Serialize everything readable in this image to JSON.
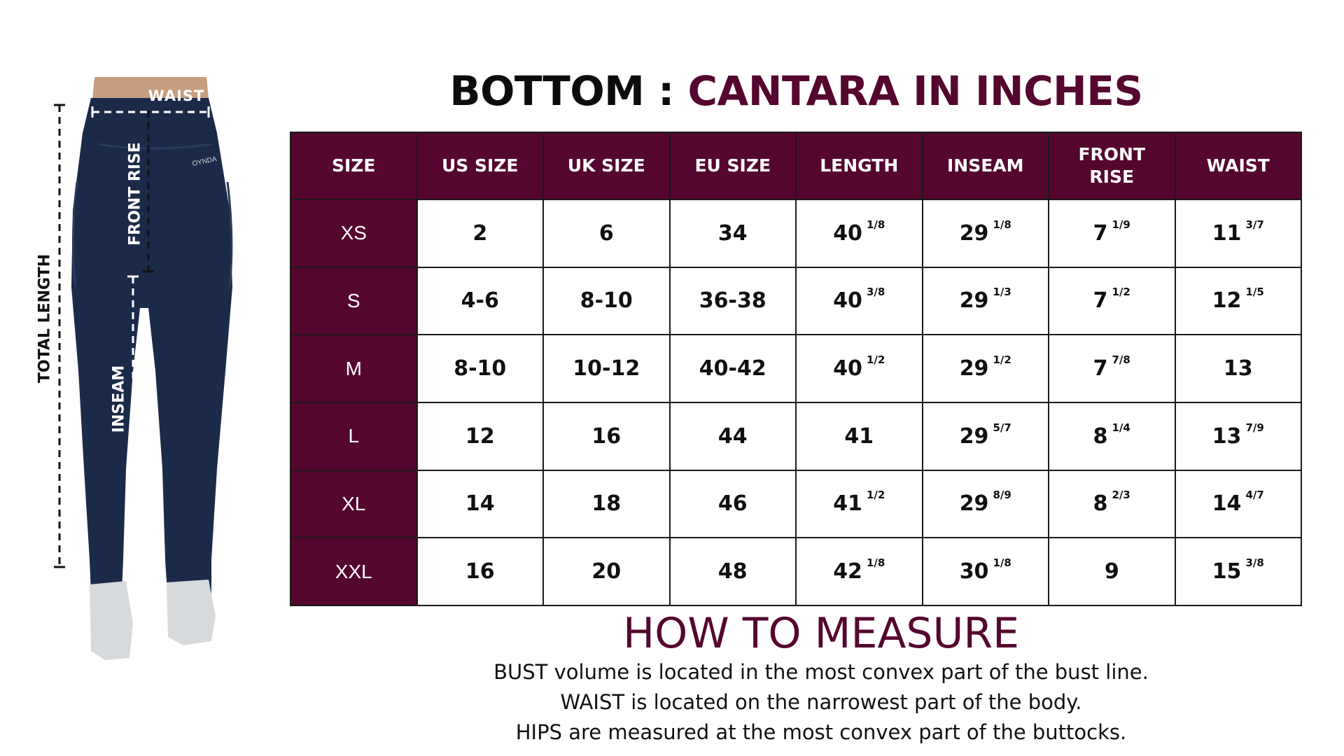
{
  "figure": {
    "labels": {
      "waist": "WAIST",
      "front_rise": "FRONT RISE",
      "total_length": "TOTAL LENGTH",
      "inseam": "INSEAM"
    },
    "logo_text": "OYNDA",
    "colors": {
      "pants": "#1c2a4a",
      "waistband": "#c69e7e",
      "shoes": "#d7dadd"
    }
  },
  "title": {
    "part1": "BOTTOM : ",
    "part2": "CANTARA IN INCHES"
  },
  "table": {
    "headers": [
      "SIZE",
      "US SIZE",
      "UK SIZE",
      "EU SIZE",
      "LENGTH",
      "INSEAM",
      "FRONT RISE",
      "WAIST"
    ],
    "rows": [
      {
        "size": "XS",
        "us": "2",
        "uk": "6",
        "eu": "34",
        "length": {
          "whole": "40",
          "frac": "1/8"
        },
        "inseam": {
          "whole": "29",
          "frac": "1/8"
        },
        "front_rise": {
          "whole": "7",
          "frac": "1/9"
        },
        "waist": {
          "whole": "11",
          "frac": "3/7"
        }
      },
      {
        "size": "S",
        "us": "4-6",
        "uk": "8-10",
        "eu": "36-38",
        "length": {
          "whole": "40",
          "frac": "3/8"
        },
        "inseam": {
          "whole": "29",
          "frac": "1/3"
        },
        "front_rise": {
          "whole": "7",
          "frac": "1/2"
        },
        "waist": {
          "whole": "12",
          "frac": "1/5"
        }
      },
      {
        "size": "M",
        "us": "8-10",
        "uk": "10-12",
        "eu": "40-42",
        "length": {
          "whole": "40",
          "frac": "1/2"
        },
        "inseam": {
          "whole": "29",
          "frac": "1/2"
        },
        "front_rise": {
          "whole": "7",
          "frac": "7/8"
        },
        "waist": {
          "whole": "13",
          "frac": ""
        }
      },
      {
        "size": "L",
        "us": "12",
        "uk": "16",
        "eu": "44",
        "length": {
          "whole": "41",
          "frac": ""
        },
        "inseam": {
          "whole": "29",
          "frac": "5/7"
        },
        "front_rise": {
          "whole": "8",
          "frac": "1/4"
        },
        "waist": {
          "whole": "13",
          "frac": "7/9"
        }
      },
      {
        "size": "XL",
        "us": "14",
        "uk": "18",
        "eu": "46",
        "length": {
          "whole": "41",
          "frac": "1/2"
        },
        "inseam": {
          "whole": "29",
          "frac": "8/9"
        },
        "front_rise": {
          "whole": "8",
          "frac": "2/3"
        },
        "waist": {
          "whole": "14",
          "frac": "4/7"
        }
      },
      {
        "size": "XXL",
        "us": "16",
        "uk": "20",
        "eu": "48",
        "length": {
          "whole": "42",
          "frac": "1/8"
        },
        "inseam": {
          "whole": "30",
          "frac": "1/8"
        },
        "front_rise": {
          "whole": "9",
          "frac": ""
        },
        "waist": {
          "whole": "15",
          "frac": "3/8"
        }
      }
    ]
  },
  "how_to_measure": {
    "title": "HOW TO MEASURE",
    "lines": [
      "BUST volume is located in the most convex part of the bust line.",
      "WAIST is located on the narrowest part of the body.",
      "HIPS are measured at the most convex part of the buttocks."
    ]
  },
  "colors": {
    "accent": "#55062f",
    "header_text": "#ffffff"
  }
}
